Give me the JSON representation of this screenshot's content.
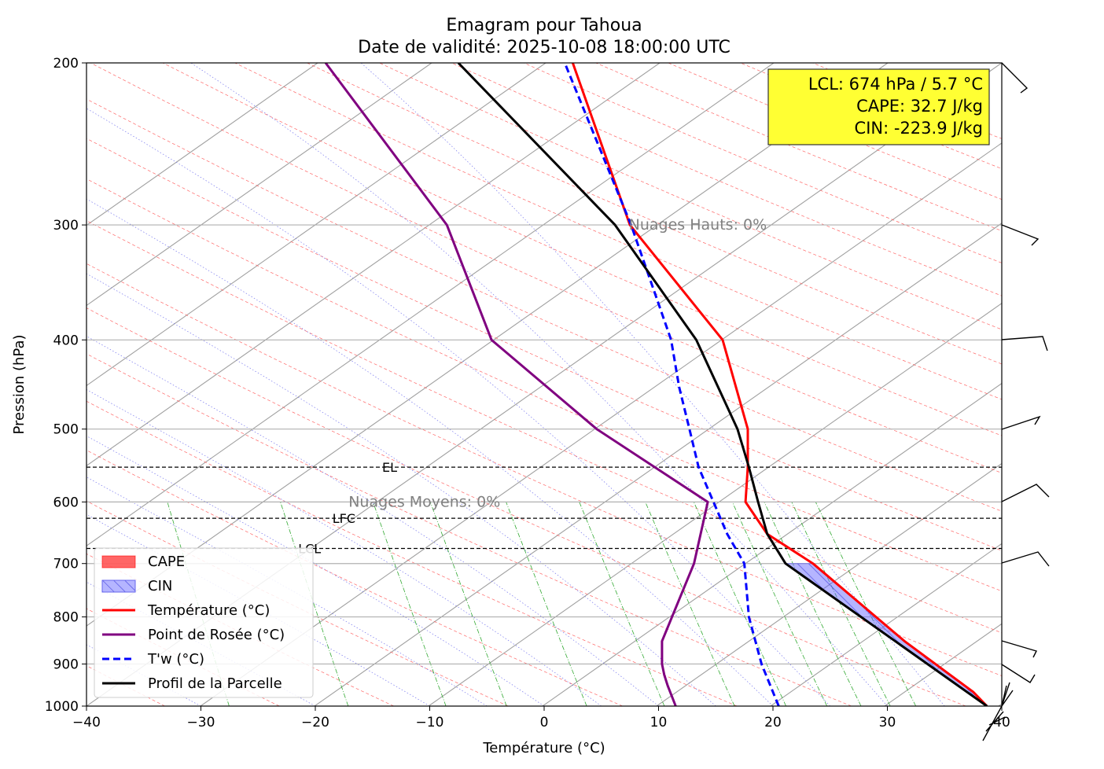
{
  "chart_data": {
    "type": "line",
    "title": "Emagram pour Tahoua",
    "subtitle": "Date de validité: 2025-10-08 18:00:00 UTC",
    "xlabel": "Température (°C)",
    "ylabel": "Pression (hPa)",
    "xlim": [
      -40,
      40
    ],
    "ylim": [
      1000,
      200
    ],
    "yscale": "log",
    "grid": true,
    "xticks": [
      -40,
      -30,
      -20,
      -10,
      0,
      10,
      20,
      30,
      40
    ],
    "xtick_labels": [
      "−40",
      "−30",
      "−20",
      "−10",
      "0",
      "10",
      "20",
      "30",
      "40"
    ],
    "yticks": [
      1000,
      900,
      800,
      700,
      600,
      500,
      400,
      300,
      200
    ],
    "ytick_labels": [
      "1000",
      "900",
      "800",
      "700",
      "600",
      "500",
      "400",
      "300",
      "200"
    ],
    "legend_position": "lower-left",
    "legend": [
      {
        "label": "CAPE",
        "kind": "patch",
        "color": "#ff0000"
      },
      {
        "label": "CIN",
        "kind": "patch-hatched",
        "color": "#0000ff"
      },
      {
        "label": "Température (°C)",
        "kind": "line",
        "color": "#ff0000"
      },
      {
        "label": "Point de Rosée (°C)",
        "kind": "line",
        "color": "#800080"
      },
      {
        "label": "T'w (°C)",
        "kind": "dashed-line",
        "color": "#0000ff"
      },
      {
        "label": "Profil de la Parcelle",
        "kind": "line",
        "color": "#000000"
      }
    ],
    "series": [
      {
        "name": "Température (°C)",
        "color": "#ff0000",
        "style": "solid",
        "points": [
          [
            38.7,
            1000
          ],
          [
            37.5,
            965
          ],
          [
            35.5,
            925
          ],
          [
            31.5,
            850
          ],
          [
            23.5,
            700
          ],
          [
            19.5,
            650
          ],
          [
            17.6,
            600
          ],
          [
            17.8,
            550
          ],
          [
            17.8,
            500
          ],
          [
            15.6,
            400
          ],
          [
            7.5,
            300
          ],
          [
            2.5,
            200
          ]
        ]
      },
      {
        "name": "Point de Rosée (°C)",
        "color": "#800080",
        "style": "solid",
        "points": [
          [
            11.5,
            1000
          ],
          [
            10.8,
            950
          ],
          [
            10.5,
            925
          ],
          [
            10.3,
            900
          ],
          [
            10.3,
            850
          ],
          [
            13.1,
            700
          ],
          [
            14.3,
            600
          ],
          [
            4.6,
            500
          ],
          [
            -4.6,
            400
          ],
          [
            -8.5,
            300
          ],
          [
            -19.1,
            200
          ]
        ]
      },
      {
        "name": "T'w (°C)",
        "color": "#0000ff",
        "style": "dashed",
        "points": [
          [
            20.5,
            1000
          ],
          [
            19.0,
            900
          ],
          [
            17.9,
            800
          ],
          [
            17.5,
            700
          ],
          [
            16.0,
            650
          ],
          [
            13.5,
            550
          ],
          [
            12.7,
            500
          ],
          [
            11.8,
            450
          ],
          [
            11.1,
            400
          ],
          [
            7.6,
            300
          ],
          [
            1.8,
            200
          ]
        ]
      },
      {
        "name": "Profil de la Parcelle",
        "color": "#000000",
        "style": "solid",
        "points": [
          [
            38.7,
            1000
          ],
          [
            21.1,
            700
          ],
          [
            19.5,
            650
          ],
          [
            18.7,
            600
          ],
          [
            17.9,
            550
          ],
          [
            16.9,
            500
          ],
          [
            13.3,
            400
          ],
          [
            6.2,
            300
          ],
          [
            -7.5,
            200
          ]
        ]
      }
    ],
    "cin_region": {
      "upper": [
        [
          38.7,
          1000
        ],
        [
          37.5,
          965
        ],
        [
          35.5,
          925
        ],
        [
          31.5,
          850
        ],
        [
          23.5,
          700
        ]
      ],
      "lower": [
        [
          38.7,
          1000
        ],
        [
          21.1,
          700
        ]
      ]
    },
    "levels": [
      {
        "label": "EL",
        "pressure": 550
      },
      {
        "label": "LFC",
        "pressure": 625
      },
      {
        "label": "LCL",
        "pressure": 674
      }
    ],
    "cloud_labels": [
      {
        "text": "Nuages Hauts: 0%",
        "pressure": 300,
        "temp": 7.4
      },
      {
        "text": "Nuages Moyens: 0%",
        "pressure": 600,
        "temp": -17.1
      }
    ],
    "info_box": {
      "lines": [
        "LCL: 674 hPa / 5.7 °C",
        "CAPE: 32.7 J/kg",
        "CIN: -223.9 J/kg"
      ],
      "background": "#ffff33"
    },
    "wind_barbs": {
      "pressures": [
        1000,
        900,
        850,
        700,
        600,
        500,
        400,
        300,
        200
      ]
    }
  },
  "colors": {
    "grid": "#b0b0b0",
    "isotherm_skew": "#a0a0a0",
    "dry_adiabat": "#ff6666",
    "moist_adiabat": "#7777ee",
    "mixing_ratio": "#33aa33"
  }
}
